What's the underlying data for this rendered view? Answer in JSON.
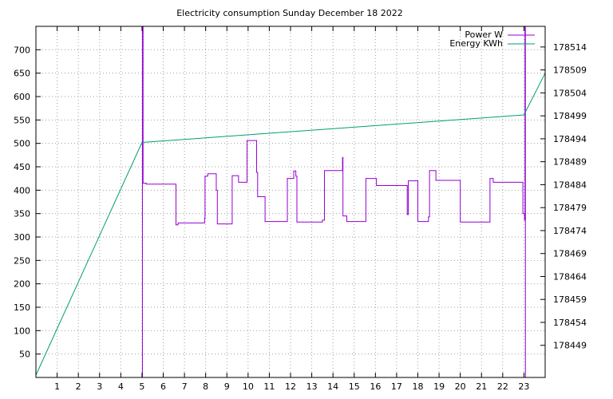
{
  "chart_data": {
    "type": "line",
    "title": "Electricity consumption Sunday December 18 2022",
    "x": {
      "range": [
        0,
        24
      ],
      "ticks": [
        1,
        2,
        3,
        4,
        5,
        6,
        7,
        8,
        9,
        10,
        11,
        12,
        13,
        14,
        15,
        16,
        17,
        18,
        19,
        20,
        21,
        22,
        23
      ],
      "grid": true
    },
    "y_left": {
      "range": [
        0,
        750
      ],
      "ticks": [
        50,
        100,
        150,
        200,
        250,
        300,
        350,
        400,
        450,
        500,
        550,
        600,
        650,
        700
      ],
      "grid": true
    },
    "y_right": {
      "range": [
        178442,
        178518.5
      ],
      "ticks": [
        178449,
        178454,
        178459,
        178464,
        178469,
        178474,
        178479,
        178484,
        178489,
        178494,
        178499,
        178504,
        178509,
        178514
      ]
    },
    "legend_position": "top-right",
    "series": [
      {
        "name": "Power W",
        "color": "#9400d3",
        "axis": "left",
        "step": true,
        "points": [
          [
            5.0,
            0
          ],
          [
            5.02,
            750
          ],
          [
            5.05,
            415
          ],
          [
            5.2,
            413
          ],
          [
            6.55,
            413
          ],
          [
            6.6,
            326
          ],
          [
            6.7,
            330
          ],
          [
            7.9,
            330
          ],
          [
            7.95,
            340
          ],
          [
            7.97,
            430
          ],
          [
            8.1,
            435
          ],
          [
            8.45,
            435
          ],
          [
            8.5,
            400
          ],
          [
            8.55,
            328
          ],
          [
            9.2,
            328
          ],
          [
            9.25,
            431
          ],
          [
            9.5,
            431
          ],
          [
            9.55,
            417
          ],
          [
            9.9,
            417
          ],
          [
            9.95,
            506
          ],
          [
            10.35,
            506
          ],
          [
            10.4,
            438
          ],
          [
            10.45,
            386
          ],
          [
            10.75,
            386
          ],
          [
            10.8,
            333
          ],
          [
            11.8,
            333
          ],
          [
            11.85,
            425
          ],
          [
            12.1,
            425
          ],
          [
            12.15,
            441
          ],
          [
            12.25,
            430
          ],
          [
            12.3,
            332
          ],
          [
            13.45,
            332
          ],
          [
            13.5,
            336
          ],
          [
            13.6,
            442
          ],
          [
            14.4,
            442
          ],
          [
            14.45,
            470
          ],
          [
            14.47,
            345
          ],
          [
            14.6,
            345
          ],
          [
            14.65,
            333
          ],
          [
            15.5,
            333
          ],
          [
            15.55,
            425
          ],
          [
            16.0,
            425
          ],
          [
            16.05,
            410
          ],
          [
            17.45,
            410
          ],
          [
            17.5,
            348
          ],
          [
            17.55,
            420
          ],
          [
            17.95,
            420
          ],
          [
            18.0,
            333
          ],
          [
            18.45,
            333
          ],
          [
            18.5,
            343
          ],
          [
            18.55,
            442
          ],
          [
            18.8,
            442
          ],
          [
            18.85,
            421
          ],
          [
            19.95,
            421
          ],
          [
            20.0,
            332
          ],
          [
            21.35,
            332
          ],
          [
            21.4,
            425
          ],
          [
            21.55,
            417
          ],
          [
            22.9,
            417
          ],
          [
            22.95,
            350
          ],
          [
            23.0,
            350
          ],
          [
            23.03,
            336
          ],
          [
            23.05,
            750
          ],
          [
            23.07,
            0
          ]
        ]
      },
      {
        "name": "Energy KWh",
        "color": "#009e73",
        "axis": "right",
        "points": [
          [
            0,
            178442.5
          ],
          [
            5.0,
            178493.2
          ],
          [
            23.0,
            178499.2
          ],
          [
            24.0,
            178508.3
          ]
        ]
      }
    ]
  }
}
